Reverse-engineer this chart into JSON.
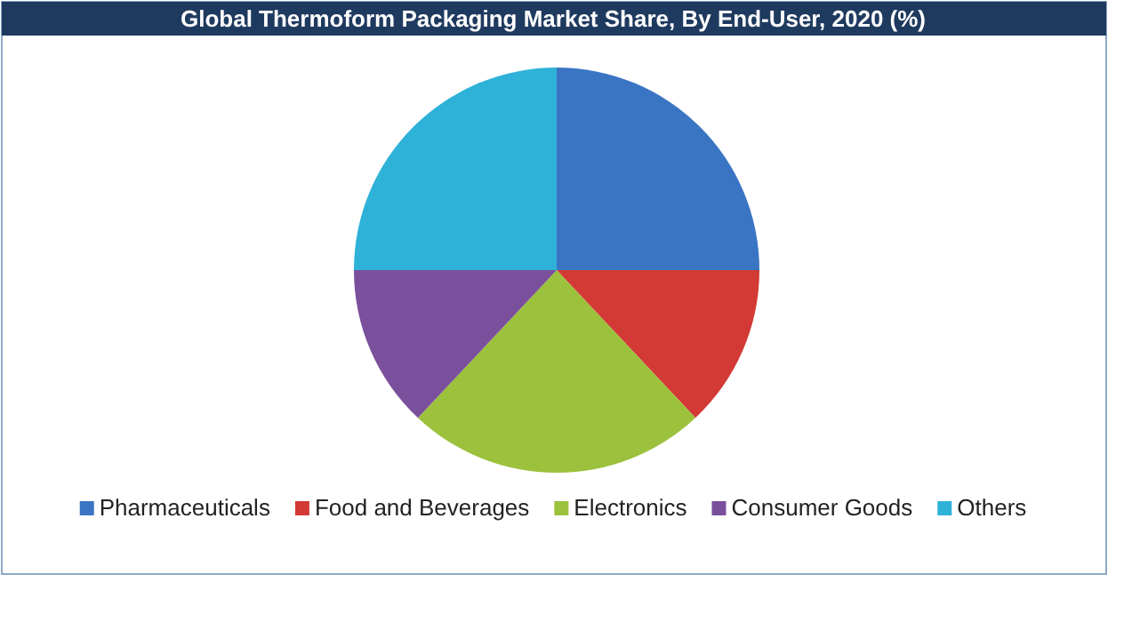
{
  "chart_data": {
    "type": "pie",
    "title": "Global Thermoform Packaging Market Share, By End-User, 2020 (%)",
    "categories": [
      "Pharmaceuticals",
      "Food and Beverages",
      "Electronics",
      "Consumer Goods",
      "Others"
    ],
    "values": [
      25,
      13,
      24,
      13,
      25
    ],
    "colors": [
      "#3a75c4",
      "#d33a36",
      "#9cc13c",
      "#7a4f9c",
      "#2eb2d8"
    ],
    "legend": "bottom"
  }
}
